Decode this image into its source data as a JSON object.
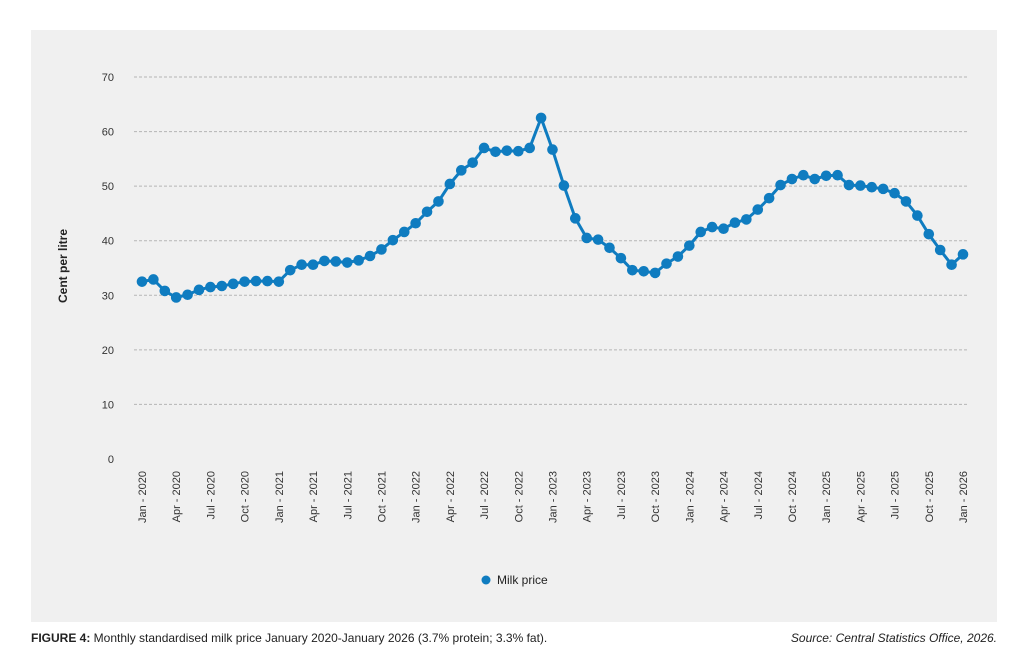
{
  "caption": {
    "label": "FIGURE 4:",
    "text": " Monthly standardised milk price January 2020-January 2026 (3.7% protein; 3.3% fat).",
    "source": "Source: Central Statistics Office, 2026."
  },
  "colors": {
    "series": "#0f7cc0",
    "grid": "#b5b5b5",
    "panel": "#f0f0f0"
  },
  "chart_data": {
    "type": "line",
    "title": "",
    "ylabel": "Cent per litre",
    "xlabel": "",
    "ylim": [
      0,
      70
    ],
    "yticks": [
      0,
      10,
      20,
      30,
      40,
      50,
      60,
      70
    ],
    "grid": "horizontal dashed",
    "legend_position": "bottom-center",
    "tick_labels": [
      "Jan - 2020",
      "Apr - 2020",
      "Jul - 2020",
      "Oct - 2020",
      "Jan - 2021",
      "Apr - 2021",
      "Jul - 2021",
      "Oct - 2021",
      "Jan - 2022",
      "Apr - 2022",
      "Jul - 2022",
      "Oct - 2022",
      "Jan - 2023",
      "Apr - 2023",
      "Jul - 2023",
      "Oct - 2023",
      "Jan - 2024",
      "Apr - 2024",
      "Jul - 2024",
      "Oct - 2024",
      "Jan - 2025",
      "Apr - 2025",
      "Jul - 2025",
      "Oct - 2025",
      "Jan - 2026"
    ],
    "series": [
      {
        "name": "Milk price",
        "values": [
          32.5,
          32.9,
          30.8,
          29.6,
          30.1,
          31.0,
          31.5,
          31.7,
          32.1,
          32.5,
          32.6,
          32.6,
          32.5,
          34.6,
          35.6,
          35.6,
          36.3,
          36.2,
          36.0,
          36.4,
          37.2,
          38.4,
          40.1,
          41.6,
          43.2,
          45.3,
          47.2,
          50.4,
          52.9,
          54.3,
          57.0,
          56.3,
          56.5,
          56.4,
          57.0,
          62.5,
          56.7,
          50.1,
          44.1,
          40.5,
          40.2,
          38.7,
          36.8,
          34.6,
          34.4,
          34.1,
          35.8,
          37.1,
          39.1,
          41.6,
          42.5,
          42.2,
          43.3,
          43.9,
          45.7,
          47.8,
          50.2,
          51.3,
          52.0,
          51.3,
          51.9,
          52.0,
          50.2,
          50.1,
          49.8,
          49.5,
          48.7,
          47.2,
          44.6,
          41.2,
          38.3,
          35.6,
          37.5
        ]
      }
    ]
  }
}
